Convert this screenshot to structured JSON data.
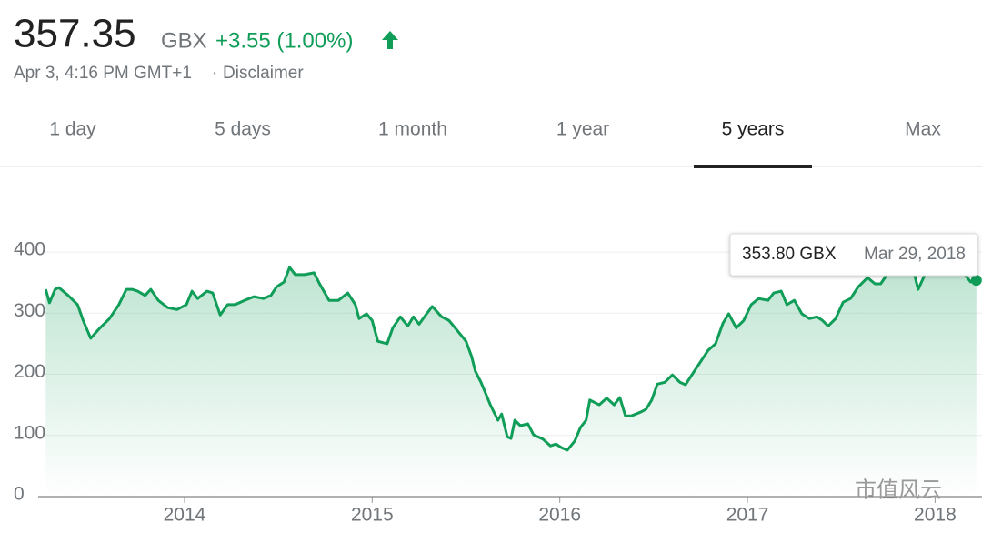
{
  "quote": {
    "price": "357.35",
    "currency": "GBX",
    "change": "+3.55 (1.00%)",
    "timestamp": "Apr 3, 4:16 PM GMT+1",
    "separator": "·",
    "disclaimer": "Disclaimer"
  },
  "tabs": {
    "items": [
      "1 day",
      "5 days",
      "1 month",
      "1 year",
      "5 years",
      "Max"
    ],
    "selected": 4
  },
  "watermark": "市值风云",
  "chart_data": {
    "type": "line",
    "color": "#0f9d58",
    "x": [
      2013.26,
      2013.28,
      2013.31,
      2013.33,
      2013.38,
      2013.43,
      2013.46,
      2013.5,
      2013.55,
      2013.6,
      2013.65,
      2013.69,
      2013.72,
      2013.75,
      2013.79,
      2013.82,
      2013.86,
      2013.91,
      2013.96,
      2014.01,
      2014.04,
      2014.07,
      2014.12,
      2014.15,
      2014.19,
      2014.23,
      2014.27,
      2014.32,
      2014.37,
      2014.42,
      2014.46,
      2014.49,
      2014.53,
      2014.56,
      2014.59,
      2014.64,
      2014.69,
      2014.72,
      2014.77,
      2014.82,
      2014.87,
      2014.91,
      2014.93,
      2014.97,
      2015.0,
      2015.03,
      2015.08,
      2015.11,
      2015.15,
      2015.19,
      2015.22,
      2015.25,
      2015.29,
      2015.32,
      2015.37,
      2015.41,
      2015.46,
      2015.5,
      2015.53,
      2015.55,
      2015.58,
      2015.63,
      2015.67,
      2015.69,
      2015.72,
      2015.74,
      2015.76,
      2015.79,
      2015.83,
      2015.86,
      2015.91,
      2015.95,
      2015.98,
      2016.01,
      2016.04,
      2016.08,
      2016.11,
      2016.14,
      2016.16,
      2016.21,
      2016.25,
      2016.29,
      2016.32,
      2016.35,
      2016.38,
      2016.43,
      2016.46,
      2016.49,
      2016.52,
      2016.56,
      2016.6,
      2016.64,
      2016.67,
      2016.71,
      2016.76,
      2016.79,
      2016.83,
      2016.87,
      2016.9,
      2016.94,
      2016.98,
      2017.02,
      2017.06,
      2017.11,
      2017.14,
      2017.18,
      2017.21,
      2017.25,
      2017.29,
      2017.33,
      2017.37,
      2017.4,
      2017.43,
      2017.47,
      2017.51,
      2017.55,
      2017.59,
      2017.64,
      2017.68,
      2017.71,
      2017.75,
      2017.79,
      2017.81,
      2017.85,
      2017.88,
      2017.91,
      2017.95,
      2018.0,
      2018.05,
      2018.1,
      2018.14,
      2018.19,
      2018.22
    ],
    "values": [
      339,
      317,
      339,
      342,
      329,
      314,
      288,
      259,
      276,
      291,
      314,
      339,
      339,
      336,
      329,
      339,
      321,
      309,
      306,
      314,
      336,
      324,
      336,
      333,
      297,
      314,
      314,
      321,
      327,
      324,
      329,
      343,
      351,
      375,
      363,
      363,
      366,
      348,
      321,
      321,
      333,
      314,
      291,
      299,
      288,
      254,
      250,
      276,
      294,
      279,
      294,
      282,
      299,
      311,
      294,
      288,
      269,
      254,
      229,
      205,
      187,
      150,
      125,
      135,
      98,
      95,
      125,
      116,
      119,
      101,
      94,
      83,
      86,
      80,
      76,
      91,
      113,
      125,
      158,
      150,
      161,
      150,
      162,
      132,
      132,
      138,
      143,
      158,
      184,
      187,
      199,
      187,
      183,
      202,
      225,
      239,
      250,
      284,
      299,
      276,
      288,
      314,
      324,
      321,
      333,
      336,
      314,
      321,
      299,
      291,
      294,
      288,
      279,
      291,
      318,
      324,
      343,
      358,
      348,
      348,
      366,
      388,
      373,
      370,
      376,
      339,
      366,
      381,
      377,
      384,
      370,
      351,
      353.8
    ],
    "xlim": [
      2013.22,
      2018.25
    ],
    "xticks": [
      2014,
      2015,
      2016,
      2017,
      2018
    ],
    "ylim": [
      0,
      470
    ],
    "yticks": [
      0,
      100,
      200,
      300,
      400
    ],
    "grid": true,
    "tooltip": {
      "value": 353.8,
      "value_label": "353.80 GBX",
      "date": "Mar 29, 2018"
    }
  }
}
